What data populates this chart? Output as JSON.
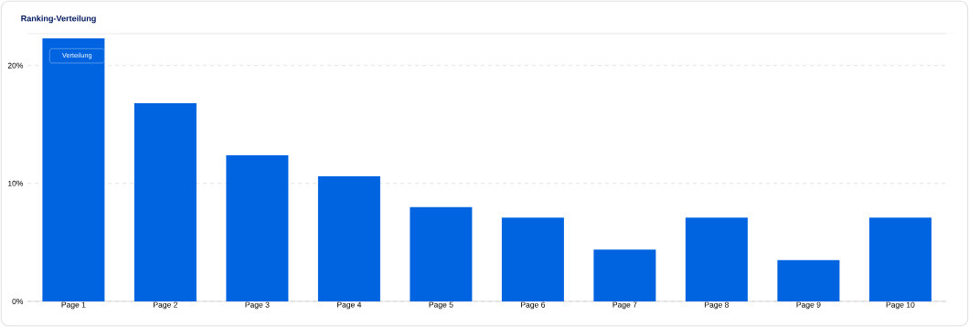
{
  "chart_data": {
    "type": "bar",
    "title": "Ranking-Verteilung",
    "categories": [
      "Page 1",
      "Page 2",
      "Page 3",
      "Page 4",
      "Page 5",
      "Page 6",
      "Page 7",
      "Page 8",
      "Page 9",
      "Page 10"
    ],
    "values": [
      22.3,
      16.8,
      12.4,
      10.6,
      8.0,
      7.1,
      4.4,
      7.1,
      3.5,
      7.1
    ],
    "color": "#0064e0",
    "ylim": [
      0,
      22.7
    ],
    "yticks": [
      {
        "value": 0,
        "label": "0%"
      },
      {
        "value": 10,
        "label": "10%"
      },
      {
        "value": 20,
        "label": "20%"
      }
    ],
    "grid": "y",
    "annotations": [
      "Verteilung"
    ]
  }
}
